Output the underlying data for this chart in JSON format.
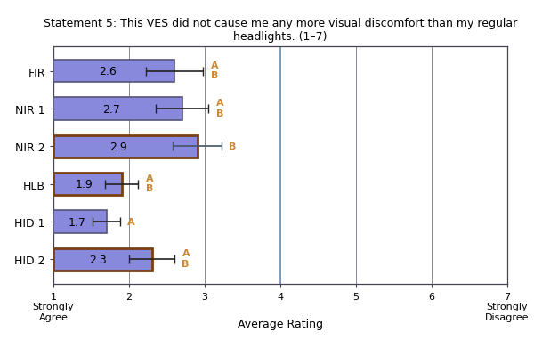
{
  "categories": [
    "FIR",
    "NIR 1",
    "NIR 2",
    "HLB",
    "HID 1",
    "HID 2"
  ],
  "values": [
    2.6,
    2.7,
    2.9,
    1.9,
    1.7,
    2.3
  ],
  "errors": [
    0.38,
    0.35,
    0.32,
    0.22,
    0.18,
    0.3
  ],
  "bar_color": "#8888dd",
  "bar_edge_colors": [
    "#555577",
    "#555577",
    "#7a4010",
    "#7a4010",
    "#555577",
    "#7a4010"
  ],
  "bar_edge_widths": [
    1.2,
    1.2,
    2.0,
    2.0,
    1.2,
    2.0
  ],
  "title_line1": "Statement 5: This VES did not cause me any more visual discomfort than my regular",
  "title_line2": "headlights. (1–7)",
  "xlabel": "Average Rating",
  "xlim": [
    1,
    7
  ],
  "xticks": [
    1,
    2,
    3,
    4,
    5,
    6,
    7
  ],
  "vertical_line_x": 4.0,
  "vertical_line_color": "#7799bb",
  "letters": [
    [
      "A",
      "B"
    ],
    [
      "A",
      "B"
    ],
    [
      "B"
    ],
    [
      "A",
      "B"
    ],
    [
      "A"
    ],
    [
      "A",
      "B"
    ]
  ],
  "letter_color": "#cc8833",
  "background_color": "#ffffff",
  "plot_bg_color": "#ffffff",
  "grid_color": "#888899",
  "bar_height": 0.6,
  "font_size": 9,
  "title_font_size": 9,
  "error_color_default": "#222222",
  "error_color_nir2": "#445566"
}
